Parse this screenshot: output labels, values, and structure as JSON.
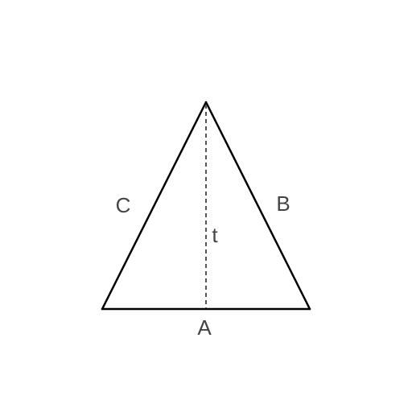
{
  "diagram": {
    "labels": {
      "base": "A",
      "right_side": "B",
      "left_side": "C",
      "height": "t"
    },
    "colors": {
      "background": "#ffffff",
      "stroke": "#000000",
      "height_line": "#555555",
      "label": "#444444"
    }
  }
}
